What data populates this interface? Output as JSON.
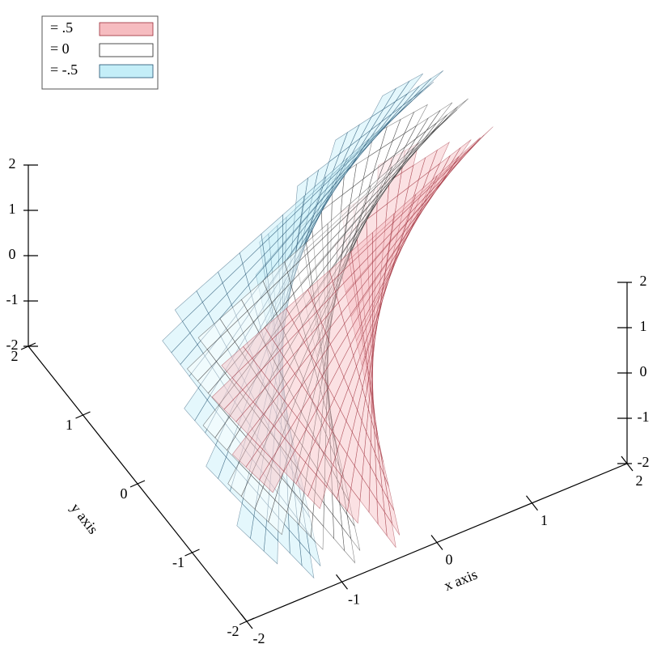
{
  "chart_data": {
    "type": "isosurface3d",
    "series": [
      {
        "name": "= .5",
        "level": 0.5,
        "color": "#f6bcc0",
        "stroke": "#9a2a36"
      },
      {
        "name": "= 0",
        "level": 0,
        "color": "#ffffff",
        "stroke": "#222222"
      },
      {
        "name": "= -.5",
        "level": -0.5,
        "color": "#c4eef8",
        "stroke": "#1f4e6e"
      }
    ],
    "xlim": [
      -2,
      2
    ],
    "ylim": [
      -2,
      2
    ],
    "zlim": [
      -2,
      2
    ],
    "xticks": [
      -2,
      -1,
      0,
      1,
      2
    ],
    "yticks": [
      -2,
      -1,
      0,
      1,
      2
    ],
    "zticks": [
      -2,
      -1,
      0,
      1,
      2
    ],
    "xlabel": "x axis",
    "ylabel": "y axis"
  }
}
